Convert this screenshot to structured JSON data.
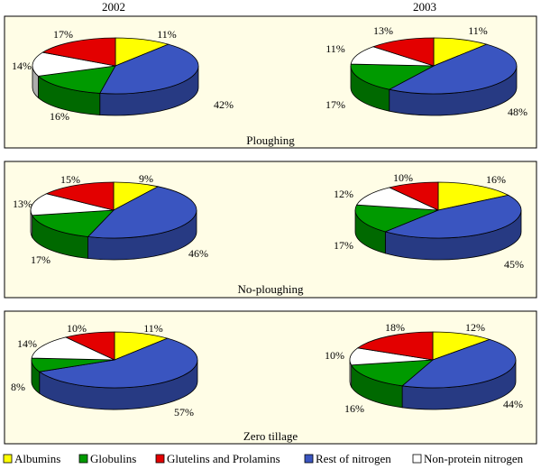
{
  "colors": {
    "Albumins": "#ffff00",
    "Globulins": "#009a00",
    "Glutelins and Prolamins": "#e30000",
    "Rest of nitrogen": "#3a55c0",
    "Non-protein nitrogen": "#ffffff",
    "panel_background": "#fffde6"
  },
  "legend": [
    "Albumins",
    "Globulins",
    "Glutelins and Prolamins",
    "Rest of nitrogen",
    "Non-protein nitrogen"
  ],
  "chart_data": [
    {
      "type": "pie",
      "year": "2002",
      "panel": "Ploughing",
      "categories": [
        "Albumins",
        "Rest of nitrogen",
        "Globulins",
        "Non-protein nitrogen",
        "Glutelins and Prolamins"
      ],
      "values": [
        11,
        42,
        16,
        14,
        17
      ]
    },
    {
      "type": "pie",
      "year": "2003",
      "panel": "Ploughing",
      "categories": [
        "Albumins",
        "Rest of nitrogen",
        "Globulins",
        "Non-protein nitrogen",
        "Glutelins and Prolamins"
      ],
      "values": [
        11,
        48,
        17,
        11,
        13
      ]
    },
    {
      "type": "pie",
      "panel": "No-ploughing",
      "categories": [
        "Albumins",
        "Rest of nitrogen",
        "Globulins",
        "Non-protein nitrogen",
        "Glutelins and Prolamins"
      ],
      "values": [
        9,
        46,
        17,
        13,
        15
      ]
    },
    {
      "type": "pie",
      "panel": "No-ploughing",
      "categories": [
        "Albumins",
        "Rest of nitrogen",
        "Globulins",
        "Non-protein nitrogen",
        "Glutelins and Prolamins"
      ],
      "values": [
        16,
        45,
        17,
        12,
        10
      ]
    },
    {
      "type": "pie",
      "panel": "Zero tillage",
      "categories": [
        "Albumins",
        "Rest of nitrogen",
        "Globulins",
        "Non-protein nitrogen",
        "Glutelins and Prolamins"
      ],
      "values": [
        11,
        57,
        8,
        14,
        10
      ]
    },
    {
      "type": "pie",
      "panel": "Zero tillage",
      "categories": [
        "Albumins",
        "Rest of nitrogen",
        "Globulins",
        "Non-protein nitrogen",
        "Glutelins and Prolamins"
      ],
      "values": [
        12,
        44,
        16,
        10,
        18
      ]
    }
  ],
  "panels": [
    {
      "title": "Ploughing"
    },
    {
      "title": "No-ploughing"
    },
    {
      "title": "Zero tillage"
    }
  ],
  "columns": [
    "2002",
    "2003"
  ]
}
